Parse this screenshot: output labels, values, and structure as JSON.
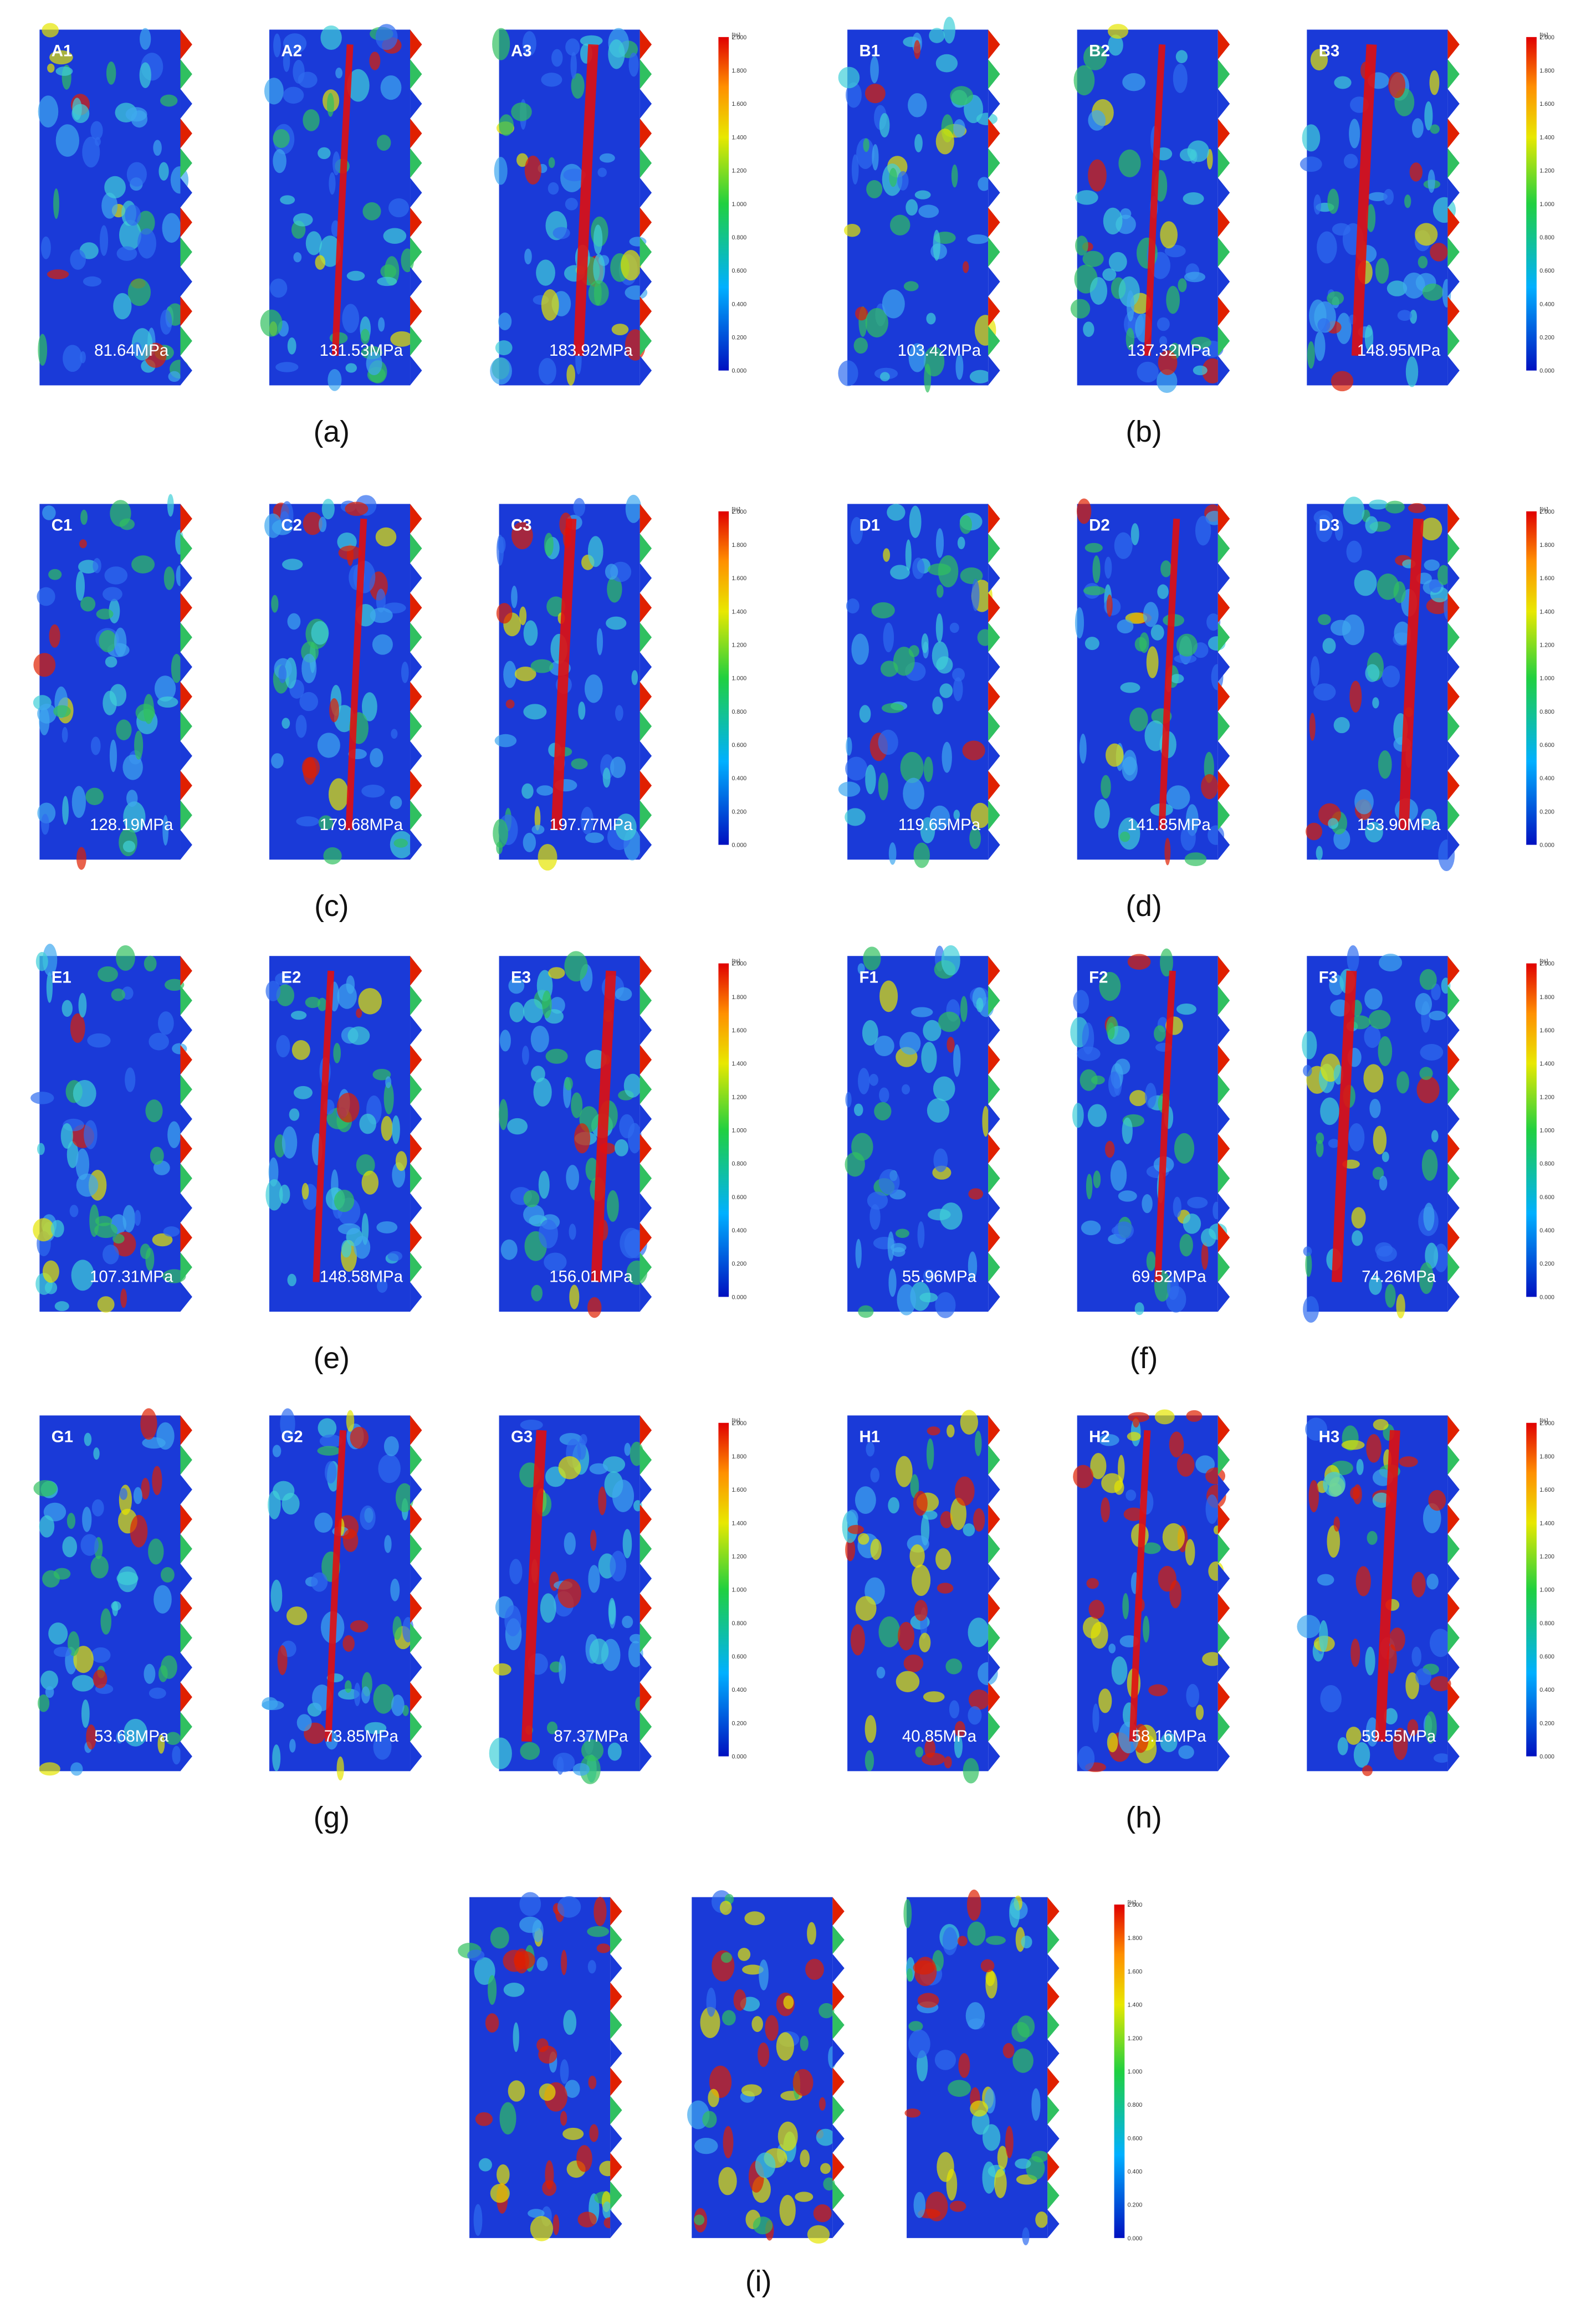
{
  "panels": [
    {
      "caption": "(a)",
      "images": [
        {
          "label": "A1",
          "stress": "81.64MPa"
        },
        {
          "label": "A2",
          "stress": "131.53MPa"
        },
        {
          "label": "A3",
          "stress": "183.92MPa"
        }
      ],
      "colorbar": {
        "unit": "[%]",
        "ticks": [
          "0.000",
          "0.200",
          "0.400",
          "0.600",
          "0.800",
          "1.000",
          "1.200",
          "1.400",
          "1.600",
          "1.800",
          "2.000"
        ]
      }
    },
    {
      "caption": "(b)",
      "images": [
        {
          "label": "B1",
          "stress": "103.42MPa"
        },
        {
          "label": "B2",
          "stress": "137.32MPa"
        },
        {
          "label": "B3",
          "stress": "148.95MPa"
        }
      ],
      "colorbar": {
        "unit": "[%]",
        "ticks": [
          "0.000",
          "0.200",
          "0.400",
          "0.600",
          "0.800",
          "1.000",
          "1.200",
          "1.400",
          "1.600",
          "1.800",
          "2.000"
        ]
      }
    },
    {
      "caption": "(c)",
      "images": [
        {
          "label": "C1",
          "stress": "128.19MPa"
        },
        {
          "label": "C2",
          "stress": "179.68MPa"
        },
        {
          "label": "C3",
          "stress": "197.77MPa"
        }
      ],
      "colorbar": {
        "unit": "[%]",
        "ticks": [
          "0.000",
          "0.200",
          "0.400",
          "0.600",
          "0.800",
          "1.000",
          "1.200",
          "1.400",
          "1.600",
          "1.800",
          "2.000"
        ]
      }
    },
    {
      "caption": "(d)",
      "images": [
        {
          "label": "D1",
          "stress": "119.65MPa"
        },
        {
          "label": "D2",
          "stress": "141.85MPa"
        },
        {
          "label": "D3",
          "stress": "153.90MPa"
        }
      ],
      "colorbar": {
        "unit": "[%]",
        "ticks": [
          "0.000",
          "0.200",
          "0.400",
          "0.600",
          "0.800",
          "1.000",
          "1.200",
          "1.400",
          "1.600",
          "1.800",
          "2.000"
        ]
      }
    },
    {
      "caption": "(e)",
      "images": [
        {
          "label": "E1",
          "stress": "107.31MPa"
        },
        {
          "label": "E2",
          "stress": "148.58MPa"
        },
        {
          "label": "E3",
          "stress": "156.01MPa"
        }
      ],
      "colorbar": {
        "unit": "[%]",
        "ticks": [
          "0.000",
          "0.200",
          "0.400",
          "0.600",
          "0.800",
          "1.000",
          "1.200",
          "1.400",
          "1.600",
          "1.800",
          "2.000"
        ]
      }
    },
    {
      "caption": "(f)",
      "images": [
        {
          "label": "F1",
          "stress": "55.96MPa"
        },
        {
          "label": "F2",
          "stress": "69.52MPa"
        },
        {
          "label": "F3",
          "stress": "74.26MPa"
        }
      ],
      "colorbar": {
        "unit": "[%]",
        "ticks": [
          "0.000",
          "0.200",
          "0.400",
          "0.600",
          "0.800",
          "1.000",
          "1.200",
          "1.400",
          "1.600",
          "1.800",
          "2.000"
        ]
      }
    },
    {
      "caption": "(g)",
      "images": [
        {
          "label": "G1",
          "stress": "53.68MPa"
        },
        {
          "label": "G2",
          "stress": "73.85MPa"
        },
        {
          "label": "G3",
          "stress": "87.37MPa"
        }
      ],
      "colorbar": {
        "unit": "[%]",
        "ticks": [
          "0.000",
          "0.200",
          "0.400",
          "0.600",
          "0.800",
          "1.000",
          "1.200",
          "1.400",
          "1.600",
          "1.800",
          "2.000"
        ]
      }
    },
    {
      "caption": "(h)",
      "images": [
        {
          "label": "H1",
          "stress": "40.85MPa"
        },
        {
          "label": "H2",
          "stress": "58.16MPa"
        },
        {
          "label": "H3",
          "stress": "59.55MPa"
        }
      ],
      "colorbar": {
        "unit": "[%]",
        "ticks": [
          "0.000",
          "0.200",
          "0.400",
          "0.600",
          "0.800",
          "1.000",
          "1.200",
          "1.400",
          "1.600",
          "1.800",
          "2.000"
        ]
      }
    },
    {
      "caption": "(i)",
      "colorbar": {
        "unit": "[%]",
        "ticks": [
          "0.000",
          "0.200",
          "0.400",
          "0.600",
          "0.800",
          "1.000",
          "1.200",
          "1.400",
          "1.600",
          "1.800",
          "2.000"
        ]
      }
    }
  ]
}
